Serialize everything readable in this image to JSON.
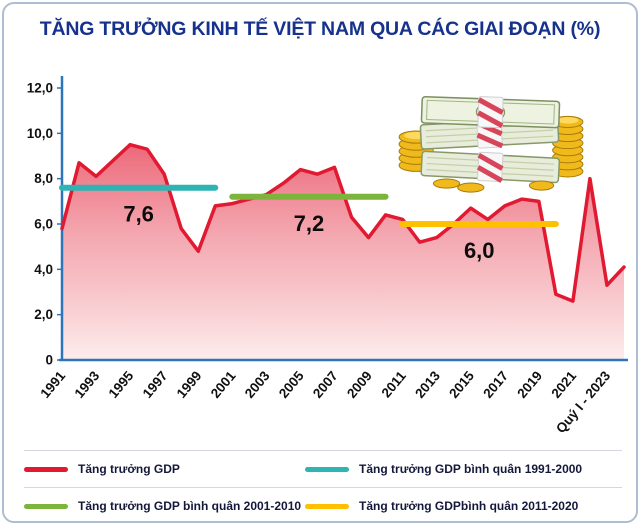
{
  "chart_data": {
    "type": "area",
    "title": "TĂNG TRƯỞNG KINH TẾ VIỆT NAM QUA CÁC GIAI ĐOẠN (%)",
    "ylim": [
      0,
      12
    ],
    "x": [
      1991,
      1992,
      1993,
      1994,
      1995,
      1996,
      1997,
      1998,
      1999,
      2000,
      2001,
      2002,
      2003,
      2004,
      2005,
      2006,
      2007,
      2008,
      2009,
      2010,
      2011,
      2012,
      2013,
      2014,
      2015,
      2016,
      2017,
      2018,
      2019,
      2020,
      2021,
      2022,
      "Quý I - 2023",
      ""
    ],
    "series": [
      {
        "name": "Tăng trưởng GDP",
        "color": "#e11931",
        "values": [
          5.8,
          8.7,
          8.1,
          8.8,
          9.5,
          9.3,
          8.2,
          5.8,
          4.8,
          6.8,
          6.9,
          7.1,
          7.3,
          7.8,
          8.4,
          8.2,
          8.5,
          6.3,
          5.4,
          6.4,
          6.2,
          5.2,
          5.4,
          6.0,
          6.7,
          6.2,
          6.8,
          7.1,
          7.0,
          2.9,
          2.6,
          8.0,
          3.3,
          4.1
        ]
      }
    ],
    "averages": [
      {
        "period": "1991-2000",
        "value": 7.6,
        "label": "7,6",
        "start_index": 0,
        "end_index": 9,
        "color": "#2fb4b4"
      },
      {
        "period": "2001-2010",
        "value": 7.2,
        "label": "7,2",
        "start_index": 10,
        "end_index": 19,
        "color": "#7db43c"
      },
      {
        "period": "2011-2020",
        "value": 6.0,
        "label": "6,0",
        "start_index": 20,
        "end_index": 29,
        "color": "#ffc000"
      }
    ],
    "y_ticks": [
      {
        "value": 0,
        "label": "0"
      },
      {
        "value": 2,
        "label": "2,0"
      },
      {
        "value": 4,
        "label": "4,0"
      },
      {
        "value": 6,
        "label": "6,0"
      },
      {
        "value": 8,
        "label": "8,0"
      },
      {
        "value": 10,
        "label": "10,0"
      },
      {
        "value": 12,
        "label": "12,0"
      }
    ],
    "x_ticks": [
      {
        "index": 0,
        "label": "1991"
      },
      {
        "index": 2,
        "label": "1993"
      },
      {
        "index": 4,
        "label": "1995"
      },
      {
        "index": 6,
        "label": "1997"
      },
      {
        "index": 8,
        "label": "1999"
      },
      {
        "index": 10,
        "label": "2001"
      },
      {
        "index": 12,
        "label": "2003"
      },
      {
        "index": 14,
        "label": "2005"
      },
      {
        "index": 16,
        "label": "2007"
      },
      {
        "index": 18,
        "label": "2009"
      },
      {
        "index": 20,
        "label": "2011"
      },
      {
        "index": 22,
        "label": "2013"
      },
      {
        "index": 24,
        "label": "2015"
      },
      {
        "index": 26,
        "label": "2017"
      },
      {
        "index": 28,
        "label": "2019"
      },
      {
        "index": 30,
        "label": "2021"
      },
      {
        "index": 32,
        "label": "Quý I - 2023"
      }
    ],
    "grid": false,
    "legend_position": "bottom"
  },
  "legend": [
    {
      "label": "Tăng trưởng GDP",
      "color": "#e11931"
    },
    {
      "label": "Tăng trưởng GDP bình quân 1991-2000",
      "color": "#2fb4b4"
    },
    {
      "label": "Tăng trưởng GDP bình quân 2001-2010",
      "color": "#7db43c"
    },
    {
      "label": "Tăng trưởng GDPbình quân 2011-2020",
      "color": "#ffc000"
    }
  ],
  "colors": {
    "title": "#16328c",
    "axis": "#2e74b8",
    "gdp_line": "#e11931",
    "area_top": "#e52e47",
    "area_bottom": "#fdecec"
  }
}
